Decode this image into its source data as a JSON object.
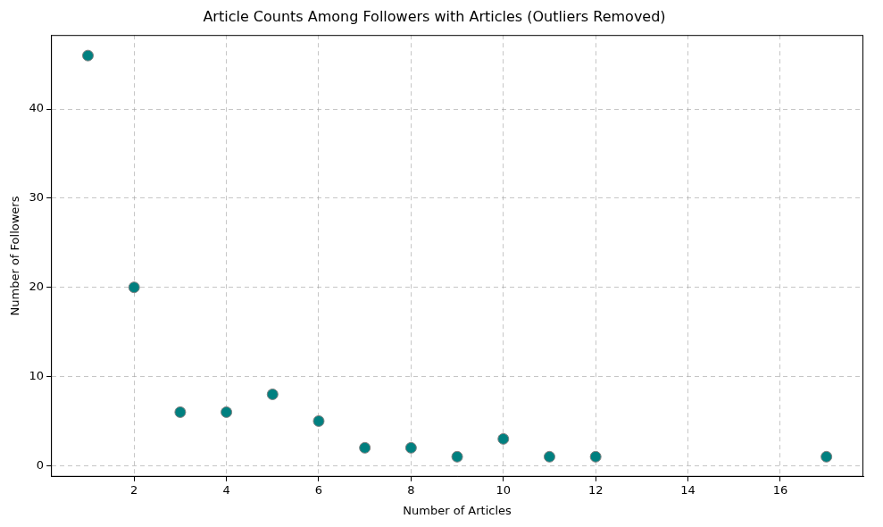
{
  "chart_data": {
    "type": "scatter",
    "title": "Article Counts Among Followers with Articles (Outliers Removed)",
    "x_label": "Number of Articles",
    "y_label": "Number of Followers",
    "x": [
      1,
      2,
      3,
      4,
      5,
      6,
      7,
      8,
      9,
      10,
      11,
      12,
      17
    ],
    "values": [
      46,
      20,
      6,
      6,
      8,
      5,
      2,
      2,
      1,
      3,
      1,
      1,
      1
    ],
    "color": "#008080",
    "marker": "circle",
    "xlim": [
      0.2,
      17.8
    ],
    "xticks": [
      2,
      4,
      6,
      8,
      10,
      12,
      14,
      16
    ],
    "ylim": [
      -1.25,
      48.3
    ],
    "yticks": [
      0,
      10,
      20,
      30,
      40
    ],
    "grid": true
  }
}
